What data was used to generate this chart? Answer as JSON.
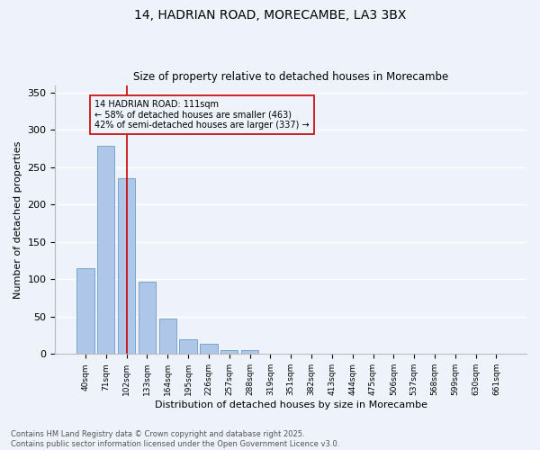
{
  "title_line1": "14, HADRIAN ROAD, MORECAMBE, LA3 3BX",
  "title_line2": "Size of property relative to detached houses in Morecambe",
  "xlabel": "Distribution of detached houses by size in Morecambe",
  "ylabel": "Number of detached properties",
  "categories": [
    "40sqm",
    "71sqm",
    "102sqm",
    "133sqm",
    "164sqm",
    "195sqm",
    "226sqm",
    "257sqm",
    "288sqm",
    "319sqm",
    "351sqm",
    "382sqm",
    "413sqm",
    "444sqm",
    "475sqm",
    "506sqm",
    "537sqm",
    "568sqm",
    "599sqm",
    "630sqm",
    "661sqm"
  ],
  "values": [
    115,
    279,
    235,
    97,
    48,
    20,
    14,
    5,
    5,
    0,
    1,
    0,
    0,
    0,
    0,
    0,
    0,
    0,
    0,
    0,
    0
  ],
  "bar_color": "#aec6e8",
  "bar_edge_color": "#5a8fc0",
  "ylim": [
    0,
    360
  ],
  "yticks": [
    0,
    50,
    100,
    150,
    200,
    250,
    300,
    350
  ],
  "vline_x": 2,
  "vline_color": "#cc0000",
  "annotation_text": "14 HADRIAN ROAD: 111sqm\n← 58% of detached houses are smaller (463)\n42% of semi-detached houses are larger (337) →",
  "annotation_box_color": "#cc0000",
  "background_color": "#eef2fb",
  "grid_color": "#ffffff",
  "footnote": "Contains HM Land Registry data © Crown copyright and database right 2025.\nContains public sector information licensed under the Open Government Licence v3.0."
}
